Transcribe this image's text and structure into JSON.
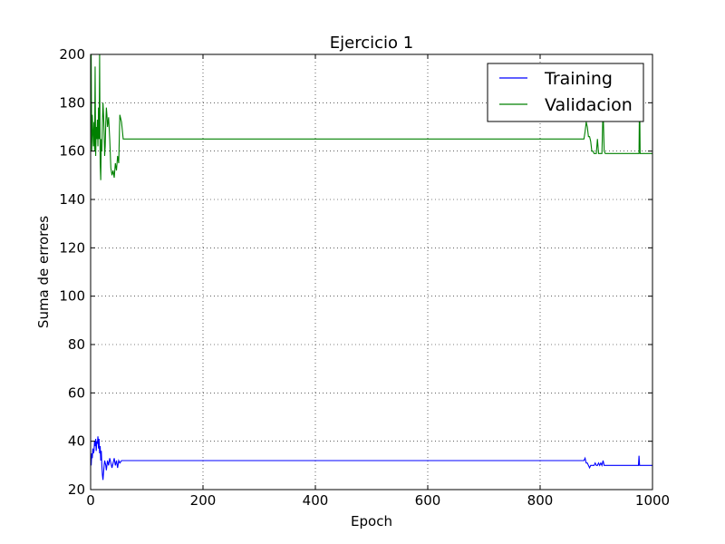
{
  "chart_data": {
    "type": "line",
    "title": "Ejercicio 1",
    "xlabel": "Epoch",
    "ylabel": "Suma de errores",
    "xlim": [
      0,
      1000
    ],
    "ylim": [
      20,
      200
    ],
    "xticks": [
      0,
      200,
      400,
      600,
      800,
      1000
    ],
    "yticks": [
      20,
      40,
      60,
      80,
      100,
      120,
      140,
      160,
      180,
      200
    ],
    "grid": true,
    "legend_position": "top-right",
    "series": [
      {
        "name": "Training",
        "color": "#0000ff",
        "x": [
          0,
          1,
          2,
          3,
          4,
          5,
          6,
          7,
          8,
          9,
          10,
          11,
          12,
          13,
          14,
          15,
          16,
          17,
          18,
          19,
          20,
          21,
          22,
          23,
          24,
          25,
          26,
          27,
          28,
          29,
          30,
          32,
          34,
          36,
          38,
          40,
          42,
          44,
          46,
          48,
          50,
          52,
          55,
          60,
          100,
          200,
          300,
          400,
          500,
          600,
          700,
          800,
          878,
          880,
          882,
          884,
          886,
          888,
          890,
          892,
          894,
          896,
          898,
          900,
          902,
          904,
          906,
          908,
          910,
          912,
          914,
          916,
          918,
          920,
          930,
          940,
          950,
          960,
          970,
          975,
          976,
          977,
          978,
          980,
          990,
          1000
        ],
        "values": [
          32,
          30,
          35,
          33,
          37,
          35,
          36,
          40,
          38,
          41,
          36,
          40,
          39,
          42,
          37,
          41,
          35,
          38,
          32,
          36,
          30,
          26,
          24,
          27,
          30,
          32,
          31,
          30,
          28,
          30,
          32,
          30,
          33,
          31,
          29,
          31,
          33,
          30,
          32,
          29,
          32,
          31,
          32,
          32,
          32,
          32,
          32,
          32,
          32,
          32,
          32,
          32,
          32,
          33,
          31,
          31,
          30,
          29,
          30,
          30,
          30,
          30,
          31,
          30,
          30,
          31,
          30,
          31,
          30,
          32,
          30,
          30,
          30,
          30,
          30,
          30,
          30,
          30,
          30,
          30,
          34,
          30,
          30,
          30,
          30,
          30
        ]
      },
      {
        "name": "Validacion",
        "color": "#008000",
        "x": [
          0,
          1,
          2,
          3,
          4,
          5,
          6,
          7,
          8,
          9,
          10,
          11,
          12,
          13,
          14,
          15,
          16,
          17,
          18,
          19,
          20,
          21,
          22,
          23,
          24,
          25,
          26,
          27,
          28,
          29,
          30,
          32,
          34,
          36,
          38,
          40,
          42,
          44,
          46,
          48,
          50,
          52,
          55,
          58,
          60,
          100,
          200,
          300,
          400,
          500,
          600,
          700,
          800,
          878,
          880,
          882,
          884,
          886,
          888,
          890,
          892,
          894,
          896,
          898,
          900,
          902,
          904,
          906,
          908,
          910,
          912,
          914,
          916,
          918,
          920,
          930,
          940,
          950,
          960,
          970,
          975,
          976,
          977,
          978,
          980,
          990,
          1000
        ],
        "values": [
          172,
          200,
          160,
          175,
          168,
          162,
          172,
          160,
          195,
          158,
          170,
          165,
          173,
          162,
          178,
          165,
          200,
          155,
          148,
          165,
          160,
          172,
          180,
          175,
          168,
          158,
          162,
          172,
          178,
          175,
          170,
          174,
          165,
          153,
          150,
          152,
          149,
          155,
          152,
          158,
          155,
          175,
          172,
          165,
          165,
          165,
          165,
          165,
          165,
          165,
          165,
          165,
          165,
          165,
          168,
          172,
          170,
          166,
          166,
          164,
          160,
          160,
          159,
          159,
          159,
          165,
          159,
          159,
          159,
          159,
          178,
          160,
          159,
          159,
          159,
          159,
          159,
          159,
          159,
          159,
          159,
          159,
          185,
          159,
          159,
          159,
          159
        ]
      }
    ]
  }
}
